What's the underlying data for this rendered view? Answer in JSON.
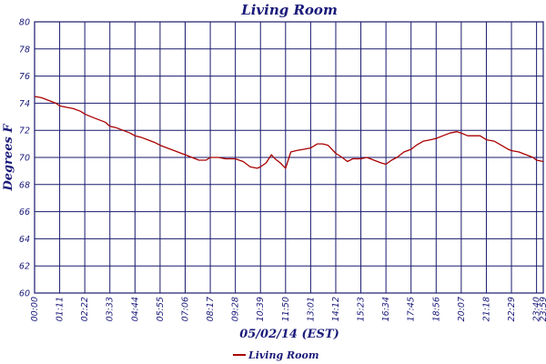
{
  "chart_data": {
    "type": "line",
    "title": "Living Room",
    "xlabel": "05/02/14 (EST)",
    "ylabel": "Degrees F",
    "ylim": [
      60,
      80
    ],
    "xlim_minutes": [
      0,
      1439
    ],
    "yticks": [
      60,
      62,
      64,
      66,
      68,
      70,
      72,
      74,
      76,
      78,
      80
    ],
    "xticks": [
      "00:00",
      "01:11",
      "02:22",
      "03:33",
      "04:44",
      "05:55",
      "07:06",
      "08:17",
      "09:28",
      "10:39",
      "11:50",
      "13:01",
      "14:12",
      "15:23",
      "16:34",
      "17:45",
      "18:56",
      "20:07",
      "21:18",
      "22:29",
      "23:40",
      "23:59"
    ],
    "grid": true,
    "legend_position": "bottom-center",
    "colors": {
      "series": "#aa0000",
      "grid": "#1a1a6e",
      "text": "#1a1a7a"
    },
    "series": [
      {
        "name": "Living Room",
        "x": [
          "00:00",
          "00:20",
          "00:40",
          "01:00",
          "01:11",
          "01:30",
          "01:50",
          "02:10",
          "02:22",
          "02:40",
          "03:00",
          "03:20",
          "03:33",
          "03:50",
          "04:10",
          "04:30",
          "04:44",
          "05:00",
          "05:20",
          "05:40",
          "05:55",
          "06:15",
          "06:35",
          "06:55",
          "07:06",
          "07:25",
          "07:45",
          "08:05",
          "08:17",
          "08:40",
          "09:00",
          "09:20",
          "09:28",
          "09:50",
          "10:10",
          "10:30",
          "10:39",
          "10:55",
          "11:10",
          "11:20",
          "11:35",
          "11:50",
          "12:05",
          "12:20",
          "12:40",
          "13:01",
          "13:20",
          "13:35",
          "13:50",
          "14:12",
          "14:30",
          "14:45",
          "15:00",
          "15:23",
          "15:40",
          "16:00",
          "16:20",
          "16:34",
          "16:50",
          "17:05",
          "17:25",
          "17:45",
          "18:00",
          "18:20",
          "18:40",
          "18:56",
          "19:15",
          "19:35",
          "19:55",
          "20:07",
          "20:25",
          "20:45",
          "21:00",
          "21:18",
          "21:40",
          "22:00",
          "22:20",
          "22:29",
          "22:50",
          "23:10",
          "23:30",
          "23:40",
          "23:59"
        ],
        "y": [
          74.5,
          74.4,
          74.2,
          74.0,
          73.8,
          73.7,
          73.6,
          73.4,
          73.2,
          73.0,
          72.8,
          72.6,
          72.3,
          72.2,
          72.0,
          71.8,
          71.6,
          71.5,
          71.3,
          71.1,
          70.9,
          70.7,
          70.5,
          70.3,
          70.2,
          70.0,
          69.8,
          69.8,
          70.0,
          70.0,
          69.9,
          69.9,
          69.9,
          69.7,
          69.3,
          69.2,
          69.3,
          69.6,
          70.2,
          69.9,
          69.6,
          69.2,
          70.4,
          70.5,
          70.6,
          70.7,
          71.0,
          71.0,
          70.9,
          70.3,
          70.0,
          69.7,
          69.9,
          69.9,
          70.0,
          69.8,
          69.6,
          69.5,
          69.8,
          70.0,
          70.4,
          70.6,
          70.9,
          71.2,
          71.3,
          71.4,
          71.6,
          71.8,
          71.9,
          71.8,
          71.6,
          71.6,
          71.6,
          71.3,
          71.2,
          70.9,
          70.6,
          70.5,
          70.4,
          70.2,
          70.0,
          69.8,
          69.7
        ]
      }
    ]
  }
}
